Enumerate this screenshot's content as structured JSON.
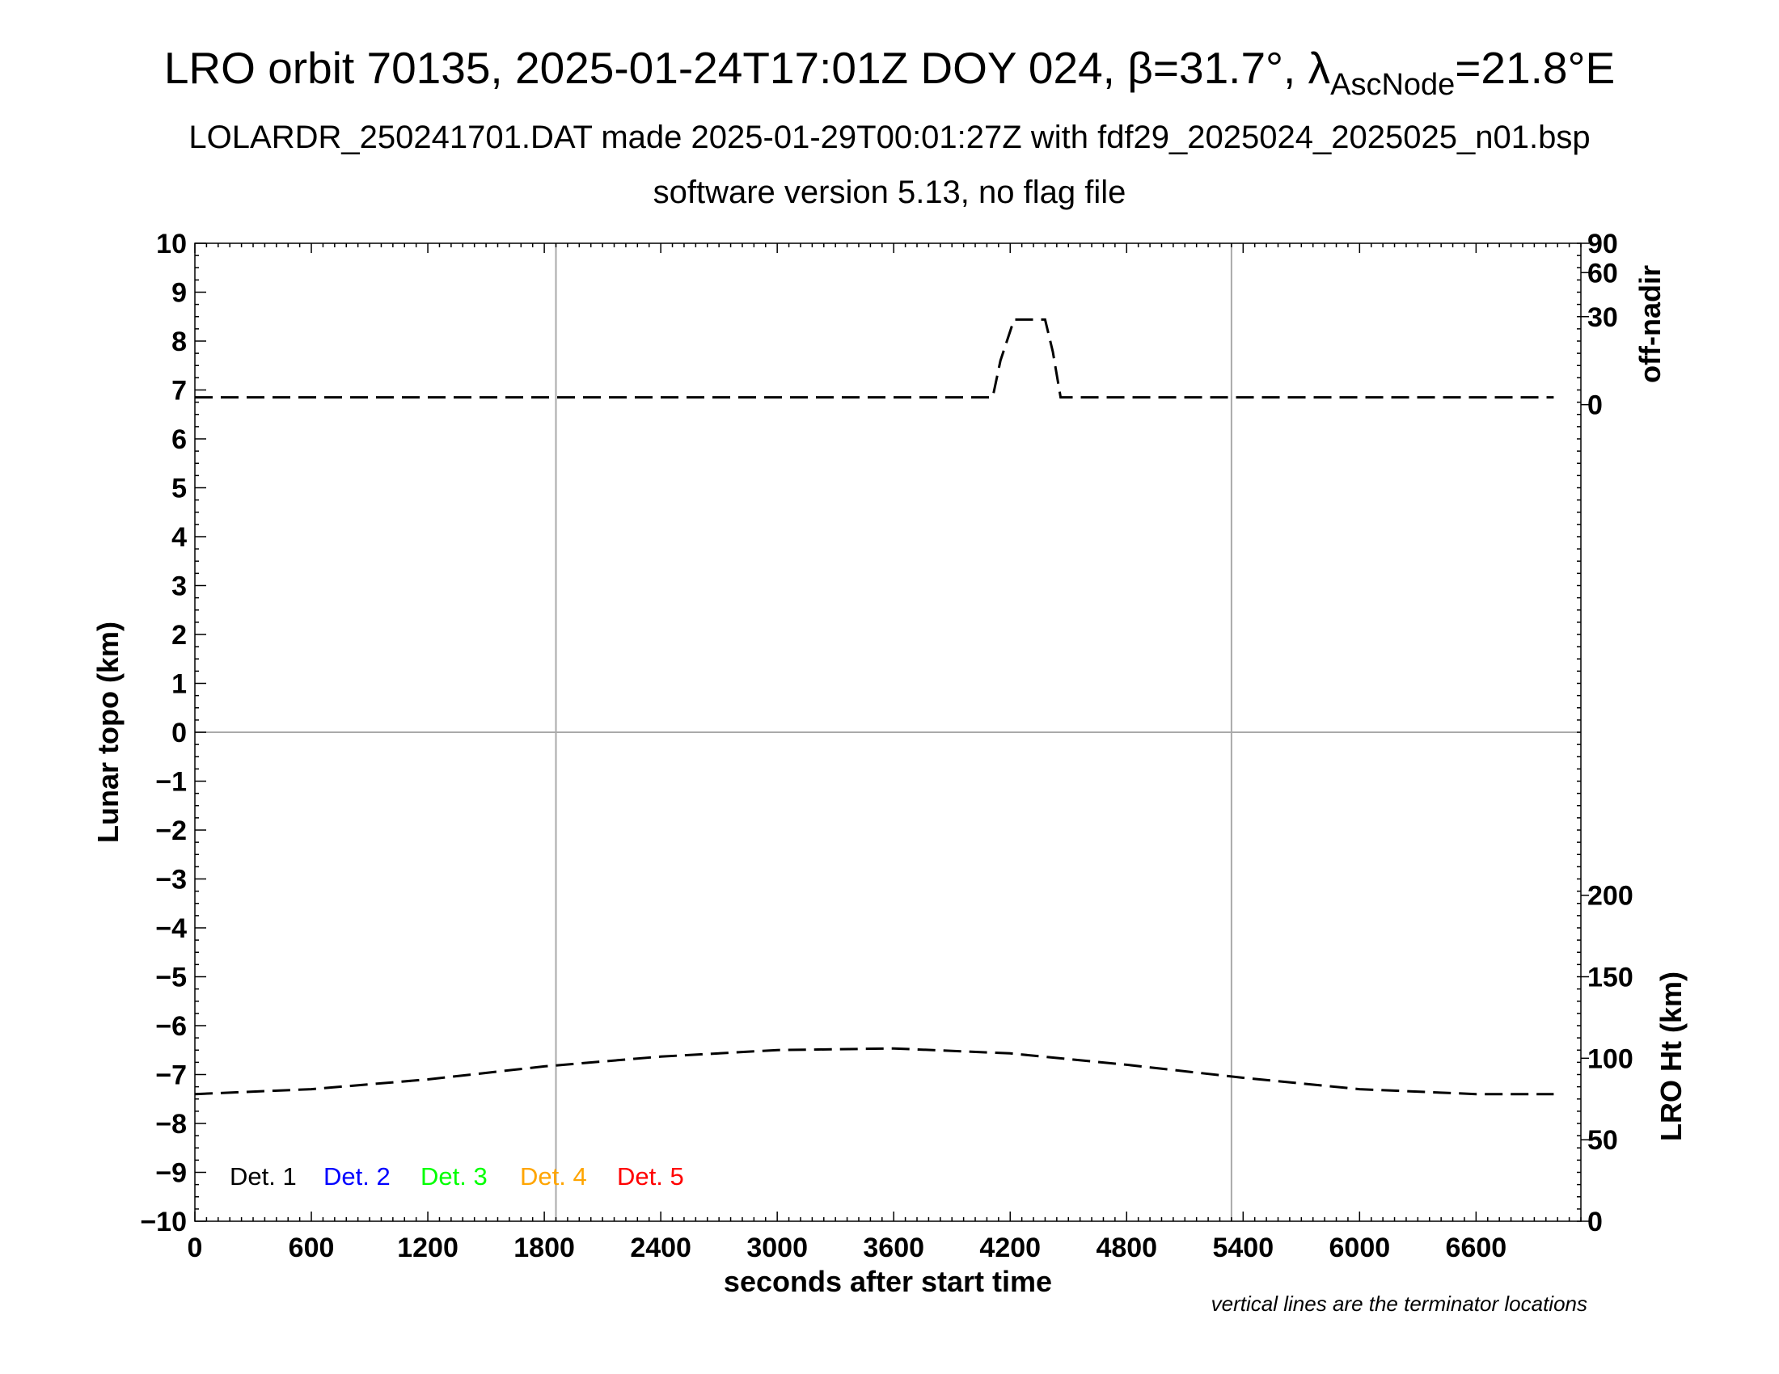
{
  "titles": {
    "line1_main": "LRO orbit 70135, 2025-01-24T17:01Z DOY 024, β=31.7°, λ",
    "line1_sub": "AscNode",
    "line1_end": "=21.8°E",
    "line2": "LOLARDR_250241701.DAT made 2025-01-29T00:01:27Z with fdf29_2025024_2025025_n01.bsp",
    "line3": "software version 5.13, no flag file"
  },
  "note": "vertical lines are the terminator locations",
  "chart_data": {
    "type": "line",
    "xlabel": "seconds after start time",
    "ylabel": "Lunar topo (km)",
    "y2label_top": "off-nadir",
    "y2label_bottom": "LRO Ht (km)",
    "xlim": [
      0,
      7140
    ],
    "ylim": [
      -10,
      10
    ],
    "x_ticks": [
      "0",
      "600",
      "1200",
      "1800",
      "2400",
      "3000",
      "3600",
      "4200",
      "4800",
      "5400",
      "6000",
      "6600"
    ],
    "y_ticks": [
      "10",
      "9",
      "8",
      "7",
      "6",
      "5",
      "4",
      "3",
      "2",
      "1",
      "0",
      "−1",
      "−2",
      "−3",
      "−4",
      "−5",
      "−6",
      "−7",
      "−8",
      "−9",
      "−10"
    ],
    "offnadir_ticks": [
      "90",
      "60",
      "30",
      "0"
    ],
    "ht_ticks": [
      "200",
      "150",
      "100",
      "50",
      "0"
    ],
    "grid_vertical_x": [
      1860,
      5340
    ],
    "grid_horizontal_y": [
      0
    ],
    "legend": [
      {
        "label": "Det. 1",
        "color": "#000000"
      },
      {
        "label": "Det. 2",
        "color": "#0000ff"
      },
      {
        "label": "Det. 3",
        "color": "#00ff00"
      },
      {
        "label": "Det. 4",
        "color": "#ffa500"
      },
      {
        "label": "Det. 5",
        "color": "#ff0000"
      }
    ],
    "series": [
      {
        "axis": "off-nadir (deg)",
        "color": "#000000",
        "x": [
          0,
          600,
          1200,
          1800,
          2400,
          3000,
          3600,
          4000,
          4110,
          4150,
          4220,
          4300,
          4380,
          4420,
          4460,
          4800,
          5400,
          6000,
          6600,
          7000
        ],
        "y": [
          2.5,
          2.5,
          2.5,
          2.5,
          2.5,
          2.5,
          2.5,
          2.5,
          2.5,
          15,
          29,
          29,
          29,
          18,
          2.5,
          2.5,
          2.5,
          2.5,
          2.5,
          2.5
        ]
      },
      {
        "axis": "LRO Ht (km)",
        "color": "#000000",
        "x": [
          0,
          600,
          1200,
          1800,
          2400,
          3000,
          3600,
          4200,
          4800,
          5400,
          6000,
          6600,
          7000
        ],
        "y": [
          78,
          81,
          87,
          95,
          101,
          105,
          106,
          103,
          96,
          88,
          81,
          78,
          78
        ]
      }
    ]
  }
}
